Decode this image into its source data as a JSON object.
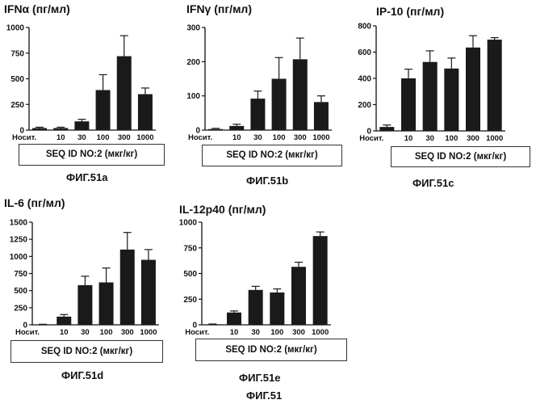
{
  "colors": {
    "bar": "#1a1a1a",
    "axis": "#111111",
    "box_border": "#333333"
  },
  "figure_label": "ФИГ.51",
  "chart_data": [
    {
      "type": "bar",
      "title": "IFNα (пг/мл)",
      "xlabel": "SEQ ID NO:2 (мкг/кг)",
      "figure": "ФИГ.51a",
      "categories": [
        "Носит.",
        "10",
        "30",
        "100",
        "300",
        "1000"
      ],
      "values": [
        20,
        20,
        85,
        390,
        720,
        350
      ],
      "errors": [
        8,
        8,
        20,
        150,
        200,
        60
      ],
      "ylim": [
        0,
        1000
      ],
      "yticks": [
        0,
        250,
        500,
        750,
        1000
      ]
    },
    {
      "type": "bar",
      "title": "IFNγ (пг/мл)",
      "xlabel": "SEQ ID NO:2 (мкг/кг)",
      "figure": "ФИГ.51b",
      "categories": [
        "Носит.",
        "10",
        "30",
        "100",
        "300",
        "1000"
      ],
      "values": [
        3,
        12,
        92,
        150,
        207,
        82
      ],
      "errors": [
        2,
        5,
        22,
        62,
        62,
        18
      ],
      "ylim": [
        0,
        300
      ],
      "yticks": [
        0,
        100,
        200,
        300
      ]
    },
    {
      "type": "bar",
      "title": "IP-10 (пг/мл)",
      "xlabel": "SEQ ID NO:2 (мкг/кг)",
      "figure": "ФИГ.51c",
      "categories": [
        "Носит.",
        "10",
        "30",
        "100",
        "300",
        "1000"
      ],
      "values": [
        30,
        400,
        525,
        475,
        635,
        695
      ],
      "errors": [
        15,
        70,
        85,
        80,
        90,
        15
      ],
      "ylim": [
        0,
        800
      ],
      "yticks": [
        0,
        200,
        400,
        600,
        800
      ]
    },
    {
      "type": "bar",
      "title": "IL-6 (пг/мл)",
      "xlabel": "SEQ ID NO:2 (мкг/кг)",
      "figure": "ФИГ.51d",
      "categories": [
        "Носит.",
        "10",
        "30",
        "100",
        "300",
        "1000"
      ],
      "values": [
        5,
        120,
        580,
        620,
        1100,
        950
      ],
      "errors": [
        3,
        30,
        130,
        210,
        250,
        150
      ],
      "ylim": [
        0,
        1500
      ],
      "yticks": [
        0,
        250,
        500,
        750,
        1000,
        1250,
        1500
      ]
    },
    {
      "type": "bar",
      "title": "IL-12p40 (пг/мл)",
      "xlabel": "SEQ ID NO:2 (мкг/кг)",
      "figure": "ФИГ.51e",
      "categories": [
        "Носит.",
        "10",
        "30",
        "100",
        "300",
        "1000"
      ],
      "values": [
        5,
        120,
        340,
        315,
        565,
        865
      ],
      "errors": [
        3,
        15,
        35,
        35,
        45,
        40
      ],
      "ylim": [
        0,
        1000
      ],
      "yticks": [
        0,
        250,
        500,
        750,
        1000
      ]
    }
  ]
}
